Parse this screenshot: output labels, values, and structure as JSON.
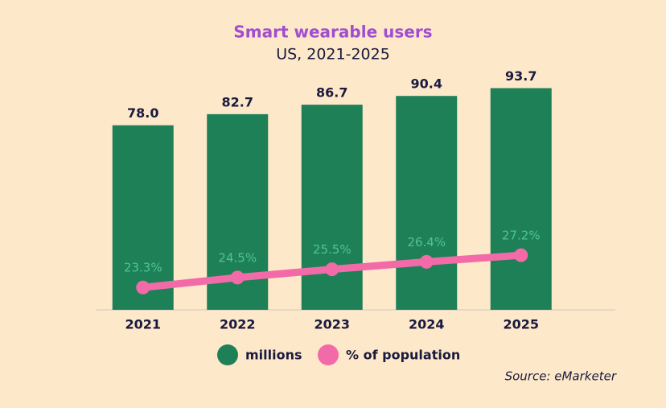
{
  "chart_data": {
    "type": "bar",
    "title": "Smart wearable users",
    "subtitle": "US, 2021-2025",
    "source": "Source: eMarketer",
    "categories": [
      "2021",
      "2022",
      "2023",
      "2024",
      "2025"
    ],
    "series": [
      {
        "name": "millions",
        "type": "bar",
        "color": "#1e8057",
        "values": [
          78.0,
          82.7,
          86.7,
          90.4,
          93.7
        ],
        "value_labels": [
          "78.0",
          "82.7",
          "86.7",
          "90.4",
          "93.7"
        ]
      },
      {
        "name": "% of population",
        "type": "line",
        "axis": "y2",
        "color": "#f26aa7",
        "values": [
          23.3,
          24.5,
          25.5,
          26.4,
          27.2
        ],
        "value_labels": [
          "23.3%",
          "24.5%",
          "25.5%",
          "26.4%",
          "27.2%"
        ]
      }
    ],
    "ylim": [
      0,
      100
    ],
    "y2lim": [
      20.6,
      49.2
    ]
  }
}
